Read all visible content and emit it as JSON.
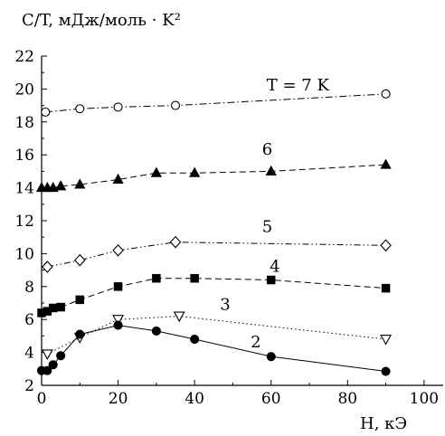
{
  "chart_data": {
    "type": "line",
    "title": "",
    "ylabel": "C/T, мДж/моль · K²",
    "xlabel": "H, кЭ",
    "xlim": [
      0,
      105
    ],
    "ylim": [
      2,
      22
    ],
    "xticks": [
      0,
      20,
      40,
      60,
      80,
      100
    ],
    "yticks": [
      2,
      4,
      6,
      8,
      10,
      12,
      14,
      16,
      18,
      20,
      22
    ],
    "grid": false,
    "series": [
      {
        "name": "T = 7 K",
        "marker": "open-circle",
        "line_style": "dash-dot",
        "color": "#000000",
        "points": [
          [
            1,
            18.6
          ],
          [
            10,
            18.8
          ],
          [
            20,
            18.9
          ],
          [
            35,
            19.0
          ],
          [
            90,
            19.7
          ]
        ]
      },
      {
        "name": "6",
        "marker": "filled-triangle",
        "line_style": "dashed",
        "color": "#000000",
        "points": [
          [
            0,
            14.0
          ],
          [
            1.5,
            14.0
          ],
          [
            3,
            14.0
          ],
          [
            5,
            14.1
          ],
          [
            10,
            14.2
          ],
          [
            20,
            14.5
          ],
          [
            30,
            14.9
          ],
          [
            40,
            14.9
          ],
          [
            60,
            15.0
          ],
          [
            90,
            15.4
          ]
        ]
      },
      {
        "name": "5",
        "marker": "open-diamond",
        "line_style": "dash-dot-dot",
        "color": "#000000",
        "points": [
          [
            1.5,
            9.2
          ],
          [
            10,
            9.6
          ],
          [
            20,
            10.2
          ],
          [
            35,
            10.7
          ],
          [
            90,
            10.5
          ]
        ]
      },
      {
        "name": "4",
        "marker": "filled-square",
        "line_style": "dashed",
        "color": "#000000",
        "points": [
          [
            0,
            6.4
          ],
          [
            1.5,
            6.5
          ],
          [
            3,
            6.7
          ],
          [
            5,
            6.75
          ],
          [
            10,
            7.2
          ],
          [
            20,
            8.0
          ],
          [
            30,
            8.5
          ],
          [
            40,
            8.5
          ],
          [
            60,
            8.4
          ],
          [
            90,
            7.9
          ]
        ]
      },
      {
        "name": "3",
        "marker": "open-triangle-down",
        "line_style": "dotted",
        "color": "#000000",
        "points": [
          [
            1.5,
            3.9
          ],
          [
            10,
            4.9
          ],
          [
            20,
            6.0
          ],
          [
            36,
            6.2
          ],
          [
            90,
            4.8
          ]
        ]
      },
      {
        "name": "2",
        "marker": "filled-circle",
        "line_style": "solid",
        "color": "#000000",
        "points": [
          [
            0,
            2.9
          ],
          [
            1.5,
            2.9
          ],
          [
            3,
            3.25
          ],
          [
            5,
            3.8
          ],
          [
            10,
            5.1
          ],
          [
            20,
            5.65
          ],
          [
            30,
            5.3
          ],
          [
            40,
            4.8
          ],
          [
            60,
            3.75
          ],
          [
            90,
            2.85
          ]
        ]
      }
    ],
    "series_labels": [
      {
        "series": 0,
        "text": "T = 7 K",
        "x": 67,
        "y": 19.9
      },
      {
        "series": 1,
        "text": "6",
        "x": 59,
        "y": 16.0
      },
      {
        "series": 2,
        "text": "5",
        "x": 59,
        "y": 11.3
      },
      {
        "series": 3,
        "text": "4",
        "x": 61,
        "y": 8.9
      },
      {
        "series": 4,
        "text": "3",
        "x": 48,
        "y": 6.6
      },
      {
        "series": 5,
        "text": "2",
        "x": 56,
        "y": 4.3
      }
    ]
  }
}
